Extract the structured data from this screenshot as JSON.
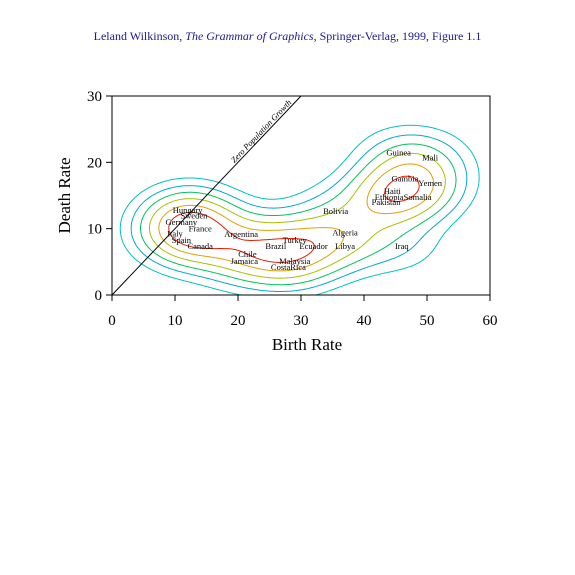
{
  "caption": {
    "author": "Leland Wilkinson, ",
    "book": "The Grammar of Graphics",
    "rest": ", Springer-Verlag, 1999, Figure 1.1"
  },
  "chart_data": {
    "type": "scatter",
    "xlabel": "Birth Rate",
    "ylabel": "Death Rate",
    "xlim": [
      0,
      60
    ],
    "ylim": [
      0,
      30
    ],
    "xticks": [
      0,
      10,
      20,
      30,
      40,
      50,
      60
    ],
    "yticks": [
      0,
      10,
      20,
      30
    ],
    "reference_line": {
      "label": "Zero Population Growth",
      "from": [
        0,
        0
      ],
      "to": [
        30,
        30
      ]
    },
    "points": [
      {
        "name": "Guinea",
        "x": 45.5,
        "y": 21.5
      },
      {
        "name": "Mali",
        "x": 50.5,
        "y": 20.7
      },
      {
        "name": "Gambia",
        "x": 46.5,
        "y": 17.6
      },
      {
        "name": "Yemen",
        "x": 50.5,
        "y": 16.9
      },
      {
        "name": "Haiti",
        "x": 44.5,
        "y": 15.7
      },
      {
        "name": "Ethiopia",
        "x": 44,
        "y": 14.8
      },
      {
        "name": "Somalia",
        "x": 48.5,
        "y": 14.8
      },
      {
        "name": "Pakistan",
        "x": 43.5,
        "y": 14.0
      },
      {
        "name": "Bolivia",
        "x": 35.5,
        "y": 12.7
      },
      {
        "name": "Hungary",
        "x": 12,
        "y": 12.8
      },
      {
        "name": "Sweden",
        "x": 13,
        "y": 12.0
      },
      {
        "name": "Germany",
        "x": 11,
        "y": 11.0
      },
      {
        "name": "France",
        "x": 14,
        "y": 10.0
      },
      {
        "name": "Italy",
        "x": 10,
        "y": 9.3
      },
      {
        "name": "Spain",
        "x": 11,
        "y": 8.3
      },
      {
        "name": "Canada",
        "x": 14,
        "y": 7.4
      },
      {
        "name": "Argentina",
        "x": 20.5,
        "y": 9.2
      },
      {
        "name": "Turkey",
        "x": 29,
        "y": 8.3
      },
      {
        "name": "Brazil",
        "x": 26,
        "y": 7.4
      },
      {
        "name": "Ecuador",
        "x": 32,
        "y": 7.4
      },
      {
        "name": "Algeria",
        "x": 37,
        "y": 9.4
      },
      {
        "name": "Libya",
        "x": 37,
        "y": 7.4
      },
      {
        "name": "Iraq",
        "x": 46,
        "y": 7.4
      },
      {
        "name": "Chile",
        "x": 21.5,
        "y": 6.2
      },
      {
        "name": "Jamaica",
        "x": 21,
        "y": 5.1
      },
      {
        "name": "Malaysia",
        "x": 29,
        "y": 5.1
      },
      {
        "name": "CostaRica",
        "x": 28,
        "y": 4.2
      }
    ]
  },
  "contour_colors": [
    "#00c0c0",
    "#00a8d0",
    "#00c060",
    "#a8c000",
    "#e0a000",
    "#e02000"
  ]
}
